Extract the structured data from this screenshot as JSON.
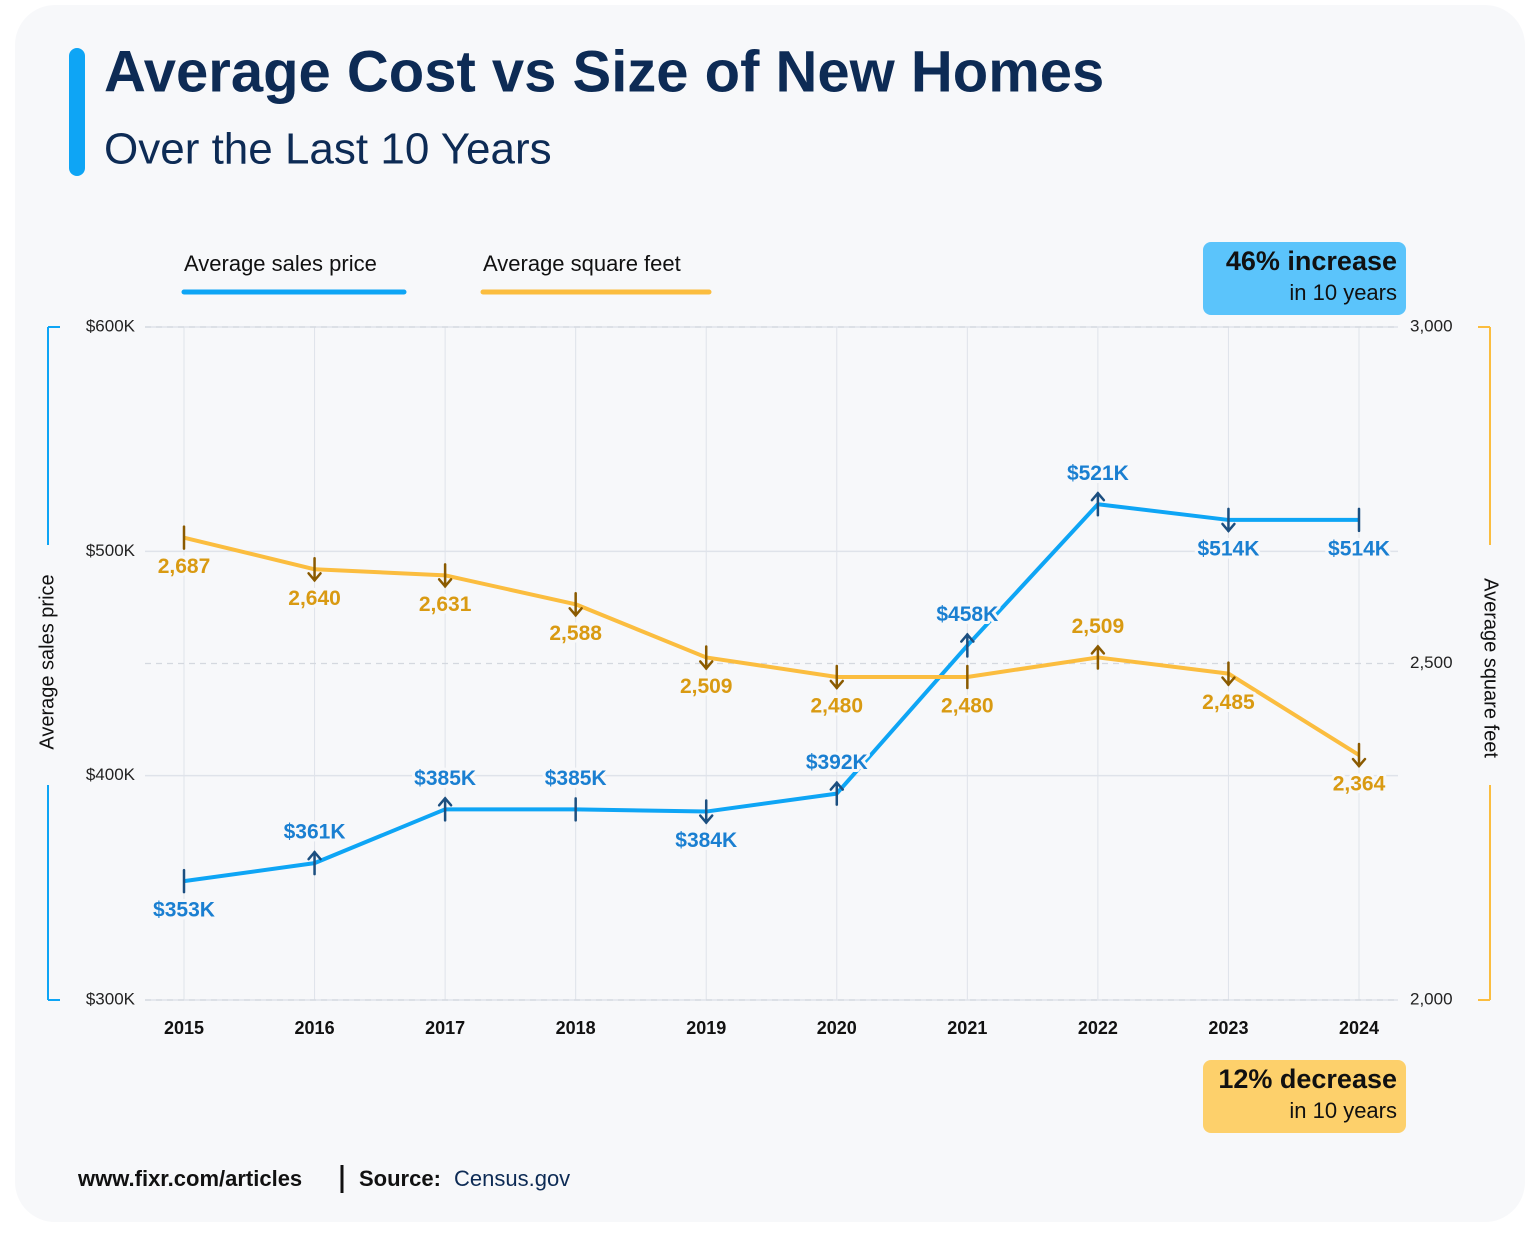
{
  "chart_data": {
    "type": "line",
    "title": "Average Cost vs Size of New Homes",
    "subtitle": "Over the Last 10 Years",
    "categories": [
      "2015",
      "2016",
      "2017",
      "2018",
      "2019",
      "2020",
      "2021",
      "2022",
      "2023",
      "2024"
    ],
    "series": [
      {
        "name": "Average sales price",
        "color": "#0ea5f5",
        "label_color": "#1a7fd1",
        "values": [
          353000,
          361000,
          385000,
          385000,
          384000,
          392000,
          458000,
          521000,
          514000,
          514000
        ],
        "value_labels": [
          "$353K",
          "$361K",
          "$385K",
          "$385K",
          "$384K",
          "$392K",
          "$458K",
          "$521K",
          "$514K",
          "$514K"
        ]
      },
      {
        "name": "Average square feet",
        "color": "#fbbd3f",
        "label_color": "#d99a12",
        "axis": "y2",
        "values": [
          2687,
          2640,
          2631,
          2588,
          2509,
          2480,
          2480,
          2509,
          2485,
          2364
        ],
        "value_labels": [
          "2,687",
          "2,640",
          "2,631",
          "2,588",
          "2,509",
          "2,480",
          "2,480",
          "2,509",
          "2,485",
          "2,364"
        ]
      }
    ],
    "y_label": "Average sales price",
    "y2_label": "Average square feet",
    "ylim": [
      300000,
      600000
    ],
    "yticks": [
      {
        "value": 300000,
        "label": "$300K"
      },
      {
        "value": 400000,
        "label": "$400K"
      },
      {
        "value": 500000,
        "label": "$500K"
      },
      {
        "value": 600000,
        "label": "$600K"
      }
    ],
    "y2lim": [
      2000,
      3000
    ],
    "y2ticks": [
      {
        "value": 2000,
        "label": "2,000"
      },
      {
        "value": 2500,
        "label": "2,500"
      },
      {
        "value": 3000,
        "label": "3,000"
      }
    ],
    "grid": true,
    "annotations": [
      {
        "text": "46% increase",
        "note": "in 10 years",
        "color": "#5bc4fb"
      },
      {
        "text": "12% decrease",
        "note": "in 10 years",
        "color": "#fdd06b"
      }
    ]
  },
  "footer": {
    "site": "www.fixr.com/articles",
    "source_label": "Source:",
    "source": "Census.gov"
  }
}
